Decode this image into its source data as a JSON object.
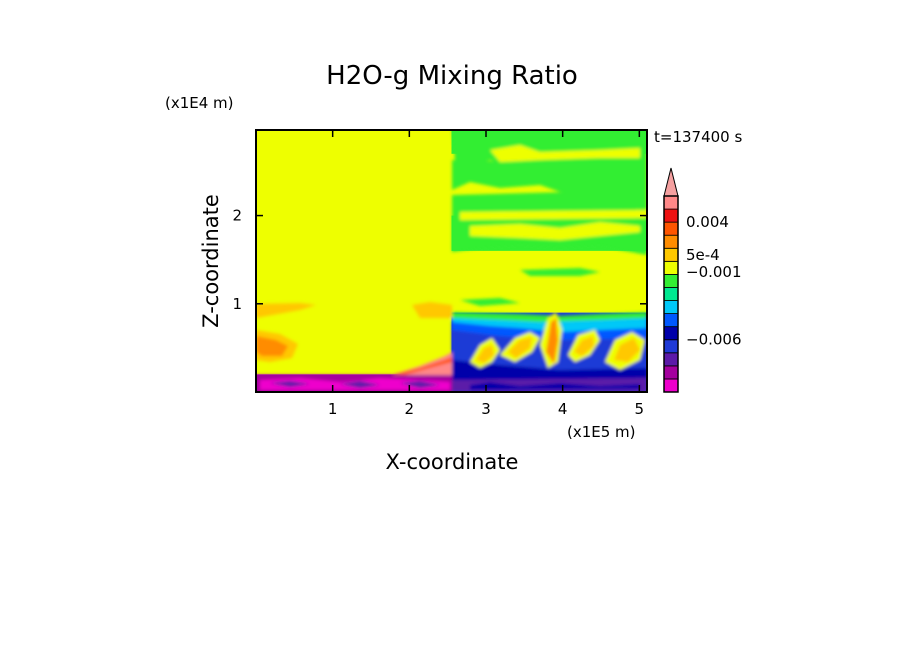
{
  "chart_data": {
    "type": "heatmap",
    "title": "H2O-g Mixing Ratio",
    "xlabel": "X-coordinate",
    "ylabel": "Z-coordinate",
    "x_unit": "(x1E5 m)",
    "y_unit": "(x1E4 m)",
    "time_label": "t=137400 s",
    "xlim": [
      0,
      5.1
    ],
    "ylim": [
      0,
      2.97
    ],
    "x_ticks": [
      {
        "value": 1,
        "label": "1"
      },
      {
        "value": 2,
        "label": "2"
      },
      {
        "value": 3,
        "label": "3"
      },
      {
        "value": 4,
        "label": "4"
      },
      {
        "value": 5,
        "label": "5"
      }
    ],
    "y_ticks": [
      {
        "value": 1,
        "label": "1"
      },
      {
        "value": 2,
        "label": "2"
      }
    ],
    "colorbar": {
      "levels": [
        "#ee00cc",
        "#a4009e",
        "#5c1aa8",
        "#1f3ad6",
        "#0000aa",
        "#0058ff",
        "#00c8f8",
        "#00e890",
        "#33ee33",
        "#eeff00",
        "#ffc800",
        "#ff8c00",
        "#ff5500",
        "#ee1111",
        "#ff8888"
      ],
      "extend_top_color": "#f5a0a0",
      "tick_labels": [
        {
          "level_boundary": 13,
          "label": "0.004"
        },
        {
          "level_boundary": 10.5,
          "label": "5e-4"
        },
        {
          "level_boundary": 9.2,
          "label": "−0.001"
        },
        {
          "level_boundary": 4,
          "label": "−0.006"
        }
      ]
    },
    "regions": [
      {
        "name": "upper-left",
        "x": [
          0,
          2.55
        ],
        "z": [
          0.2,
          2.97
        ],
        "color": "#eeff00"
      },
      {
        "name": "upper-right",
        "x": [
          2.55,
          5.1
        ],
        "z": [
          0.9,
          2.97
        ],
        "color": "#eeff00"
      },
      {
        "name": "green-top-band",
        "x": [
          2.55,
          5.1
        ],
        "z": [
          2.7,
          2.97
        ],
        "color": "#33ee33"
      },
      {
        "name": "green-mid-band",
        "x": [
          2.55,
          5.1
        ],
        "z": [
          1.6,
          2.0
        ],
        "color": "#33ee33"
      },
      {
        "name": "lower-right-blue",
        "x": [
          2.55,
          5.1
        ],
        "z": [
          0.0,
          0.9
        ],
        "color": "#1f3ad6"
      },
      {
        "name": "bottom-magenta",
        "x": [
          0,
          2.55
        ],
        "z": [
          0.0,
          0.2
        ],
        "color": "#a4009e"
      }
    ]
  }
}
